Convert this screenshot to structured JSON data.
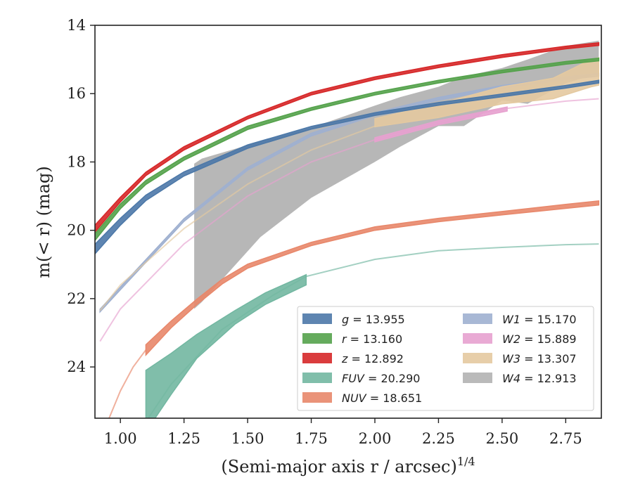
{
  "chart_data": {
    "type": "line",
    "xlabel": "(Semi-major axis r / arcsec)",
    "xlabel_exponent": "1/4",
    "ylabel": "m(< r) (mag)",
    "xlim": [
      0.9,
      2.89
    ],
    "ylim": [
      25.5,
      14
    ],
    "y_inverted": true,
    "x_ticks": [
      1.0,
      1.25,
      1.5,
      1.75,
      2.0,
      2.25,
      2.5,
      2.75
    ],
    "x_tick_labels": [
      "1.00",
      "1.25",
      "1.50",
      "1.75",
      "2.00",
      "2.25",
      "2.50",
      "2.75"
    ],
    "y_ticks": [
      14,
      16,
      18,
      20,
      22,
      24
    ],
    "y_tick_labels": [
      "14",
      "16",
      "18",
      "20",
      "22",
      "24"
    ],
    "grid": false,
    "legend_placement": "lower-right",
    "legend_columns": 2,
    "series": [
      {
        "name": "g = 13.955",
        "legend_symbol": "g",
        "legend_value": "13.955",
        "color": "#4c78a8",
        "x": [
          0.9,
          1.0,
          1.1,
          1.25,
          1.5,
          1.75,
          2.0,
          2.25,
          2.5,
          2.75,
          2.88
        ],
        "y": [
          20.55,
          19.75,
          19.05,
          18.35,
          17.55,
          17.0,
          16.6,
          16.3,
          16.05,
          15.8,
          15.65
        ],
        "band_width": [
          0.14,
          0.1,
          0.08,
          0.06,
          0.05,
          0.04,
          0.04,
          0.04,
          0.04,
          0.04,
          0.04
        ],
        "x_faint": [],
        "y_faint": []
      },
      {
        "name": "r = 13.160",
        "legend_symbol": "r",
        "legend_value": "13.160",
        "color": "#54a24b",
        "x": [
          0.9,
          1.0,
          1.1,
          1.25,
          1.5,
          1.75,
          2.0,
          2.25,
          2.5,
          2.75,
          2.88
        ],
        "y": [
          20.2,
          19.3,
          18.6,
          17.9,
          17.0,
          16.45,
          16.0,
          15.65,
          15.35,
          15.1,
          15.0
        ],
        "band_width": [
          0.1,
          0.07,
          0.06,
          0.05,
          0.05,
          0.04,
          0.04,
          0.04,
          0.04,
          0.04,
          0.04
        ],
        "x_faint": [],
        "y_faint": []
      },
      {
        "name": "z = 12.892",
        "legend_symbol": "z",
        "legend_value": "12.892",
        "color": "#d62728",
        "x": [
          0.9,
          1.0,
          1.1,
          1.25,
          1.5,
          1.75,
          2.0,
          2.25,
          2.5,
          2.75,
          2.88
        ],
        "y": [
          19.95,
          19.1,
          18.35,
          17.6,
          16.7,
          16.0,
          15.55,
          15.2,
          14.9,
          14.65,
          14.55
        ],
        "band_width": [
          0.1,
          0.07,
          0.05,
          0.05,
          0.04,
          0.04,
          0.04,
          0.04,
          0.04,
          0.04,
          0.04
        ],
        "x_faint": [],
        "y_faint": []
      },
      {
        "name": "FUV = 20.290",
        "legend_symbol": "FUV",
        "legend_value": "20.290",
        "color": "#72b7a1",
        "x": [
          1.1,
          1.2,
          1.3,
          1.45,
          1.57,
          1.73
        ],
        "y": [
          25.0,
          24.2,
          23.4,
          22.55,
          22.0,
          21.45
        ],
        "band_width": [
          0.9,
          0.6,
          0.35,
          0.2,
          0.17,
          0.15
        ],
        "x_faint": [
          1.06,
          1.1,
          1.2,
          1.4,
          1.6,
          1.73,
          2.0,
          2.25,
          2.5,
          2.75,
          2.88
        ],
        "y_faint": [
          26.0,
          25.6,
          24.5,
          22.9,
          21.9,
          21.35,
          20.85,
          20.6,
          20.5,
          20.42,
          20.4
        ]
      },
      {
        "name": "NUV = 18.651",
        "legend_symbol": "NUV",
        "legend_value": "18.651",
        "color": "#e8876a",
        "x": [
          1.1,
          1.2,
          1.3,
          1.4,
          1.5,
          1.75,
          2.0,
          2.25,
          2.5,
          2.75,
          2.88
        ],
        "y": [
          23.5,
          22.75,
          22.1,
          21.5,
          21.05,
          20.4,
          19.95,
          19.7,
          19.5,
          19.3,
          19.2
        ],
        "band_width": [
          0.15,
          0.1,
          0.08,
          0.07,
          0.06,
          0.05,
          0.05,
          0.05,
          0.05,
          0.06,
          0.06
        ],
        "x_faint": [
          0.95,
          1.0,
          1.05,
          1.1
        ],
        "y_faint": [
          25.6,
          24.7,
          24.0,
          23.5
        ]
      },
      {
        "name": "W1 = 15.170",
        "legend_symbol": "W1",
        "legend_value": "15.170",
        "color": "#9fb0d0",
        "x": [
          0.92,
          1.0,
          1.25,
          1.5,
          1.75,
          2.0,
          2.25,
          2.5,
          2.75,
          2.88
        ],
        "y": [
          22.35,
          21.7,
          19.7,
          18.2,
          17.2,
          16.6,
          16.15,
          15.8,
          15.55,
          15.45
        ],
        "band_width": [
          0.04,
          0.04,
          0.04,
          0.04,
          0.04,
          0.04,
          0.04,
          0.04,
          0.04,
          0.04
        ],
        "x_faint": [],
        "y_faint": []
      },
      {
        "name": "W2 = 15.889",
        "legend_symbol": "W2",
        "legend_value": "15.889",
        "color": "#e7a1cf",
        "x": [
          2.0,
          2.25,
          2.52
        ],
        "y": [
          17.35,
          16.85,
          16.45
        ],
        "band_width": [
          0.06,
          0.06,
          0.06
        ],
        "x_faint": [
          0.92,
          1.0,
          1.25,
          1.5,
          1.75,
          2.0,
          2.25,
          2.5,
          2.75,
          2.88
        ],
        "y_faint": [
          23.25,
          22.3,
          20.4,
          19.0,
          18.0,
          17.35,
          16.85,
          16.45,
          16.22,
          16.15
        ]
      },
      {
        "name": "W3 = 13.307",
        "legend_symbol": "W3",
        "legend_value": "13.307",
        "color": "#e4c9a0",
        "x": [
          2.0,
          2.25,
          2.5,
          2.7,
          2.85,
          2.88
        ],
        "y": [
          16.85,
          16.5,
          16.05,
          15.85,
          15.4,
          15.35
        ],
        "band_width": [
          0.12,
          0.2,
          0.25,
          0.3,
          0.4,
          0.4
        ],
        "x_faint": [
          0.92,
          1.0,
          1.25,
          1.5,
          1.75,
          2.0
        ],
        "y_faint": [
          22.35,
          21.6,
          19.95,
          18.65,
          17.65,
          16.95
        ]
      },
      {
        "name": "W4 = 12.913",
        "legend_symbol": "W4",
        "legend_value": "12.913",
        "color": "#b3b3b3",
        "x": [
          1.29,
          1.32,
          1.55,
          1.75,
          2.0,
          2.1,
          2.25,
          2.35,
          2.5,
          2.6,
          2.75,
          2.88
        ],
        "y_upper": [
          18.05,
          17.9,
          17.4,
          17.0,
          16.35,
          16.1,
          15.8,
          15.5,
          15.25,
          15.0,
          14.6,
          14.45
        ],
        "y_lower": [
          22.3,
          22.1,
          20.2,
          19.05,
          18.0,
          17.55,
          16.95,
          16.95,
          16.2,
          16.3,
          15.7,
          15.4
        ]
      }
    ]
  }
}
